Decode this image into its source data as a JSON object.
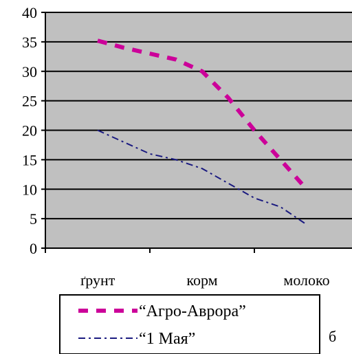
{
  "chart_data": {
    "type": "line",
    "categories": [
      "ґрунт",
      "корм",
      "молоко"
    ],
    "series": [
      {
        "name": "“Агро-Аврора”",
        "x": [
          0,
          0.25,
          0.5,
          0.75,
          1.0,
          1.25,
          1.5,
          1.75,
          2.0
        ],
        "values": [
          35.2,
          34,
          33,
          32,
          30,
          25.5,
          20,
          15,
          10
        ],
        "color": "#cc0099",
        "style": "dashed-thick"
      },
      {
        "name": "“1 Мая”",
        "x": [
          0,
          0.25,
          0.5,
          0.75,
          1.0,
          1.25,
          1.5,
          1.75,
          2.0
        ],
        "values": [
          20,
          18,
          16,
          15,
          13.5,
          11,
          8.5,
          7,
          4
        ],
        "color": "#1a1a80",
        "style": "dash-dot"
      }
    ],
    "ylim": [
      0,
      40
    ],
    "yticks": [
      "0",
      "5",
      "10",
      "15",
      "20",
      "25",
      "30",
      "35",
      "40"
    ],
    "grid": true,
    "legend_position": "bottom",
    "plot_background": "#c0c0c0",
    "title": "",
    "xlabel": "",
    "ylabel": ""
  },
  "panel_label": "б"
}
